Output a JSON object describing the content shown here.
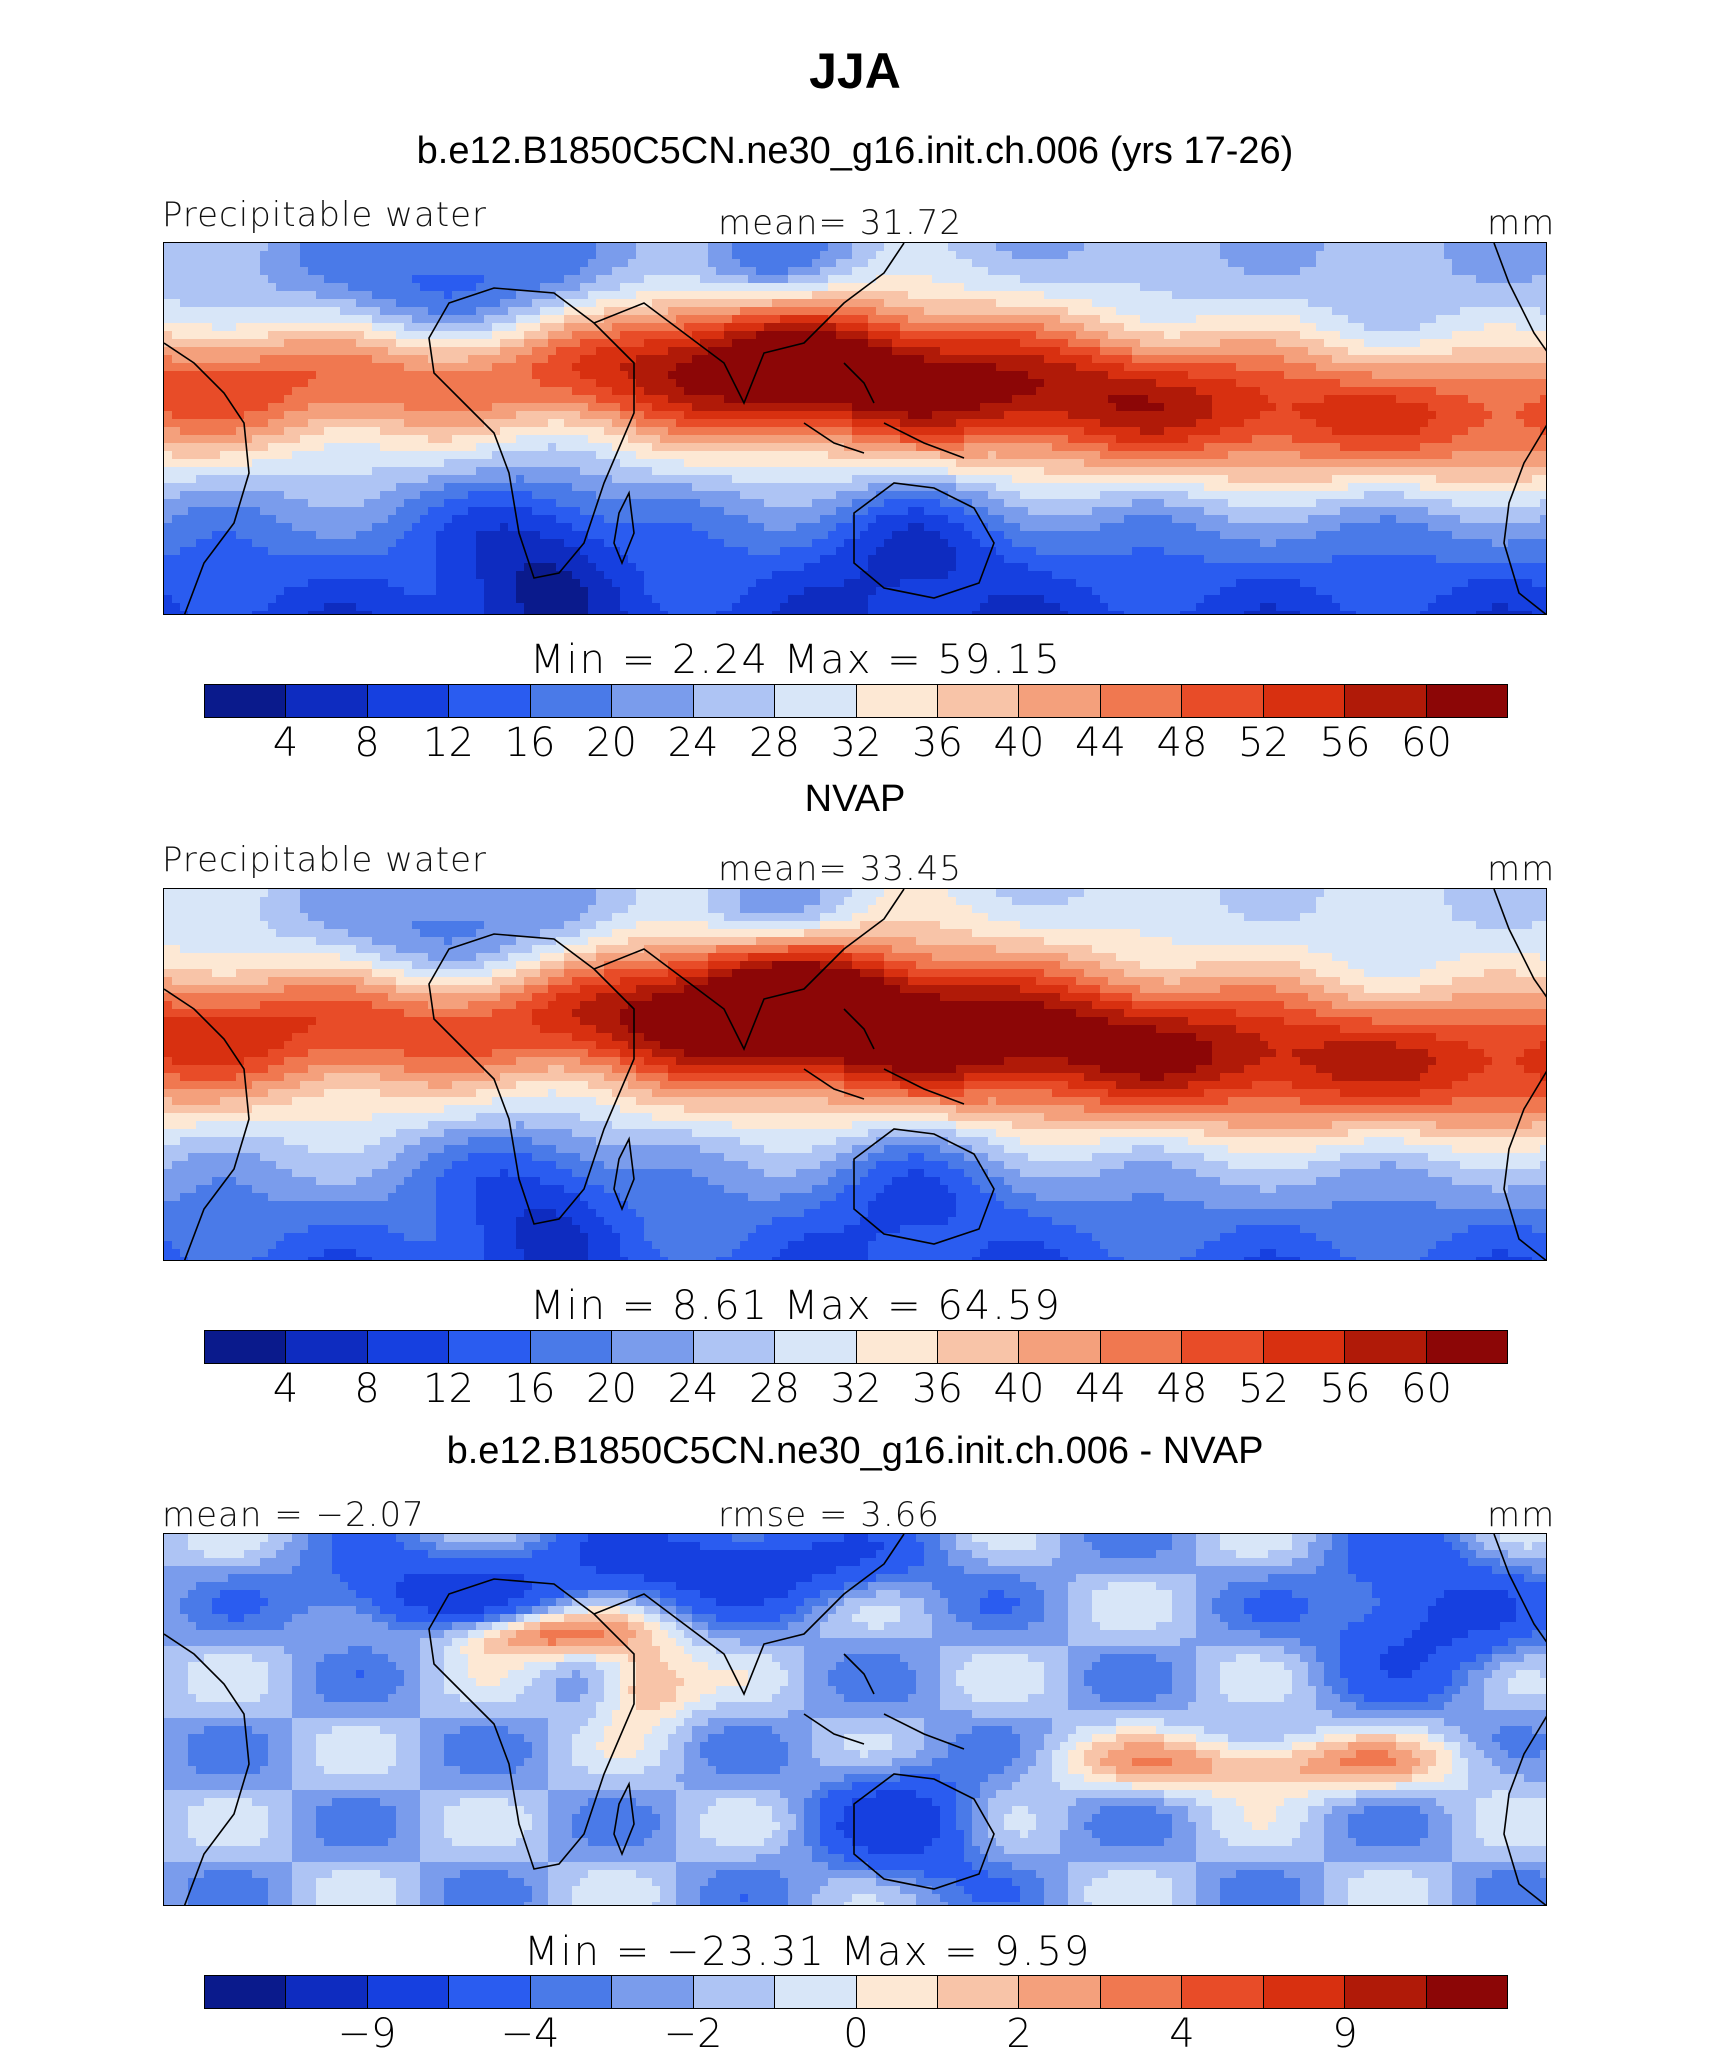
{
  "title": "JJA",
  "colors": [
    "#0a1a8c",
    "#0e2cc0",
    "#1640e0",
    "#2a5cf0",
    "#4a7ae8",
    "#7a9cec",
    "#aec4f4",
    "#d8e6f8",
    "#fde8d4",
    "#f8c4a8",
    "#f4a07c",
    "#f07850",
    "#e84c28",
    "#d83010",
    "#b01a08",
    "#8c0606"
  ],
  "panels": [
    {
      "subtitle": "b.e12.B1850C5CN.ne30_g16.init.ch.006 (yrs 17-26)",
      "left_label": "Precipitable water",
      "center_label": "mean=   31.72",
      "units": "mm",
      "minmax": "Min  =     2.24  Max  =    59.15",
      "ticks": [
        "4",
        "8",
        "12",
        "16",
        "20",
        "24",
        "28",
        "32",
        "36",
        "40",
        "44",
        "48",
        "52",
        "56",
        "60"
      ],
      "field": "model"
    },
    {
      "subtitle": "NVAP",
      "left_label": "Precipitable water",
      "center_label": "mean=   33.45",
      "units": "mm",
      "minmax": "Min  =     8.61  Max  =    64.59",
      "ticks": [
        "4",
        "8",
        "12",
        "16",
        "20",
        "24",
        "28",
        "32",
        "36",
        "40",
        "44",
        "48",
        "52",
        "56",
        "60"
      ],
      "field": "obs"
    },
    {
      "subtitle": "b.e12.B1850C5CN.ne30_g16.init.ch.006 - NVAP",
      "left_label": "mean =   −2.07",
      "center_label": "rmse =     3.66",
      "units": "mm",
      "minmax": "Min  = −23.31  Max  =     9.59",
      "ticks": [
        "−9",
        "−4",
        "−2",
        "0",
        "2",
        "4",
        "9"
      ],
      "field": "diff"
    }
  ]
}
